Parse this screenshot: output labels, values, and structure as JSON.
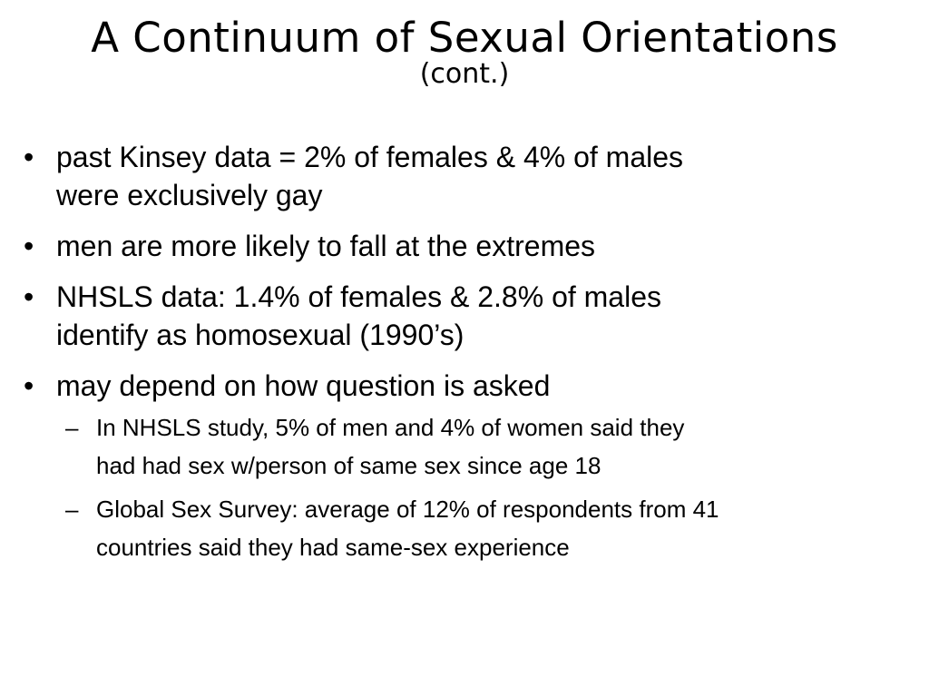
{
  "slide": {
    "title": "A Continuum of Sexual Orientations",
    "subtitle": "(cont.)",
    "bullet_char": "•",
    "dash_char": "–",
    "bullets": [
      {
        "lines": [
          "past Kinsey data = 2% of females & 4% of males",
          "were exclusively gay"
        ]
      },
      {
        "lines": [
          "men are more likely to fall at the extremes"
        ]
      },
      {
        "lines": [
          "NHSLS data: 1.4% of females & 2.8% of males",
          "identify as homosexual (1990’s)"
        ]
      },
      {
        "lines": [
          "may depend on how question is asked"
        ],
        "sub_bullets": [
          {
            "lines": [
              "In NHSLS study, 5% of men and 4% of women said they",
              "had had sex w/person of same sex since age 18"
            ]
          },
          {
            "lines": [
              "Global Sex Survey: average of 12% of respondents from 41",
              "countries said they had same-sex experience"
            ]
          }
        ]
      }
    ]
  }
}
